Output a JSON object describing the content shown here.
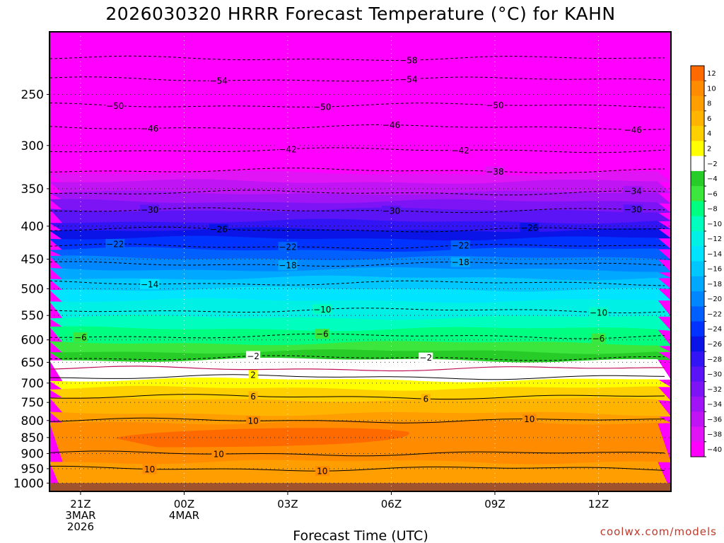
{
  "chart_data": {
    "type": "heatmap",
    "title": "2026030320 HRRR Forecast Temperature (°C) for KAHN",
    "xlabel": "Forecast Time (UTC)",
    "ylabel": "",
    "credit": "coolwx.com/models",
    "x_range_hours": [
      -0.9,
      17.1
    ],
    "x_ticks": [
      {
        "hour": 0,
        "lines": [
          "21Z",
          "3MAR",
          "2026"
        ]
      },
      {
        "hour": 3,
        "lines": [
          "00Z",
          "4MAR"
        ]
      },
      {
        "hour": 6,
        "lines": [
          "03Z"
        ]
      },
      {
        "hour": 9,
        "lines": [
          "06Z"
        ]
      },
      {
        "hour": 12,
        "lines": [
          "09Z"
        ]
      },
      {
        "hour": 15,
        "lines": [
          "12Z"
        ]
      }
    ],
    "y_axis": {
      "scale": "log-pressure",
      "range_hpa": [
        200,
        1030
      ],
      "ticks": [
        250,
        300,
        350,
        400,
        450,
        500,
        550,
        600,
        650,
        700,
        750,
        800,
        850,
        900,
        950,
        1000
      ]
    },
    "grid": true,
    "temperature_profile": [
      {
        "p": 200,
        "t": -60
      },
      {
        "p": 220,
        "t": -58
      },
      {
        "p": 235,
        "t": -55
      },
      {
        "p": 250,
        "t": -52
      },
      {
        "p": 265,
        "t": -49
      },
      {
        "p": 285,
        "t": -46
      },
      {
        "p": 300,
        "t": -43
      },
      {
        "p": 320,
        "t": -39.5
      },
      {
        "p": 335,
        "t": -37
      },
      {
        "p": 350,
        "t": -34.5
      },
      {
        "p": 370,
        "t": -31
      },
      {
        "p": 385,
        "t": -29
      },
      {
        "p": 400,
        "t": -26.5
      },
      {
        "p": 420,
        "t": -23.5
      },
      {
        "p": 440,
        "t": -21
      },
      {
        "p": 460,
        "t": -18.5
      },
      {
        "p": 480,
        "t": -16
      },
      {
        "p": 500,
        "t": -14
      },
      {
        "p": 525,
        "t": -11.5
      },
      {
        "p": 550,
        "t": -10
      },
      {
        "p": 575,
        "t": -8
      },
      {
        "p": 600,
        "t": -6.5
      },
      {
        "p": 620,
        "t": -4.5
      },
      {
        "p": 632,
        "t": -2.5
      },
      {
        "p": 640,
        "t": -2
      },
      {
        "p": 665,
        "t": 0
      },
      {
        "p": 685,
        "t": 2
      },
      {
        "p": 700,
        "t": 3.5
      },
      {
        "p": 725,
        "t": 5
      },
      {
        "p": 750,
        "t": 6.5
      },
      {
        "p": 775,
        "t": 8
      },
      {
        "p": 800,
        "t": 10
      },
      {
        "p": 830,
        "t": 11.2
      },
      {
        "p": 860,
        "t": 11.5
      },
      {
        "p": 900,
        "t": 10.5
      },
      {
        "p": 950,
        "t": 9.5
      },
      {
        "p": 990,
        "t": 8.5
      },
      {
        "p": 1030,
        "t": 8
      }
    ],
    "warm_core": {
      "t": 12,
      "hours": [
        1,
        9.5
      ],
      "p_hpa": [
        825,
        880
      ]
    },
    "ground": {
      "p_hpa": [
        1000,
        1030
      ],
      "color": "#a0522d"
    },
    "isotherms": [
      {
        "t": -58,
        "p": 220,
        "labels": [
          {
            "hour": 9.5
          }
        ]
      },
      {
        "t": -54,
        "p": 237,
        "labels": [
          {
            "hour": 4
          },
          {
            "hour": 9.5
          }
        ]
      },
      {
        "t": -50,
        "p": 260,
        "labels": [
          {
            "hour": 1
          },
          {
            "hour": 7
          },
          {
            "hour": 12
          }
        ]
      },
      {
        "t": -46,
        "p": 281,
        "labels": [
          {
            "hour": 2
          },
          {
            "hour": 9
          },
          {
            "hour": 16
          }
        ]
      },
      {
        "t": -42,
        "p": 305,
        "labels": [
          {
            "hour": 6
          },
          {
            "hour": 11
          }
        ]
      },
      {
        "t": -38,
        "p": 328,
        "labels": [
          {
            "hour": 12
          }
        ]
      },
      {
        "t": -34,
        "p": 355,
        "labels": [
          {
            "hour": 16
          }
        ]
      },
      {
        "t": -30,
        "p": 378,
        "labels": [
          {
            "hour": 2
          },
          {
            "hour": 9
          },
          {
            "hour": 16
          }
        ]
      },
      {
        "t": -26,
        "p": 405,
        "labels": [
          {
            "hour": 4
          },
          {
            "hour": 13
          }
        ]
      },
      {
        "t": -22,
        "p": 430,
        "labels": [
          {
            "hour": 1
          },
          {
            "hour": 6
          },
          {
            "hour": 11
          }
        ]
      },
      {
        "t": -18,
        "p": 458,
        "labels": [
          {
            "hour": 6
          },
          {
            "hour": 11
          }
        ]
      },
      {
        "t": -14,
        "p": 490,
        "labels": [
          {
            "hour": 2
          }
        ]
      },
      {
        "t": -10,
        "p": 540,
        "labels": [
          {
            "hour": 7
          },
          {
            "hour": 15
          }
        ]
      },
      {
        "t": -6,
        "p": 592,
        "labels": [
          {
            "hour": 0
          },
          {
            "hour": 7
          },
          {
            "hour": 15
          }
        ]
      },
      {
        "t": -2,
        "p": 640,
        "labels": [
          {
            "hour": 5
          },
          {
            "hour": 10
          }
        ]
      },
      {
        "t": 2,
        "p": 685,
        "labels": [
          {
            "hour": 5
          }
        ]
      },
      {
        "t": 6,
        "p": 735,
        "labels": [
          {
            "hour": 5
          },
          {
            "hour": 10
          }
        ]
      },
      {
        "t": 10,
        "p": 800,
        "labels": [
          {
            "hour": 5
          },
          {
            "hour": 13
          }
        ]
      },
      {
        "t": 10,
        "p": 900,
        "labels": [
          {
            "hour": 4
          }
        ]
      },
      {
        "t": 10,
        "p": 950,
        "labels": [
          {
            "hour": 2
          },
          {
            "hour": 7
          }
        ]
      }
    ],
    "colorbar": {
      "ticks": [
        12,
        10,
        8,
        6,
        4,
        2,
        -2,
        -4,
        -6,
        -8,
        -10,
        -12,
        -14,
        -16,
        -18,
        -20,
        -22,
        -24,
        -26,
        -28,
        -30,
        -32,
        -34,
        -36,
        -38,
        -40
      ],
      "colors": [
        {
          "min": 12,
          "color": "#ff6a00"
        },
        {
          "min": 10,
          "color": "#ff8c00"
        },
        {
          "min": 8,
          "color": "#ff9e00"
        },
        {
          "min": 6,
          "color": "#ffb400"
        },
        {
          "min": 4,
          "color": "#ffd000"
        },
        {
          "min": 2,
          "color": "#ffff00"
        },
        {
          "min": -2,
          "color": "#ffffff"
        },
        {
          "min": -4,
          "color": "#28cc28"
        },
        {
          "min": -6,
          "color": "#3ce63c"
        },
        {
          "min": -8,
          "color": "#00ff80"
        },
        {
          "min": -10,
          "color": "#00ffbe"
        },
        {
          "min": -12,
          "color": "#00f0e6"
        },
        {
          "min": -14,
          "color": "#00e4ff"
        },
        {
          "min": -16,
          "color": "#00c8ff"
        },
        {
          "min": -18,
          "color": "#00a8ff"
        },
        {
          "min": -20,
          "color": "#0087ff"
        },
        {
          "min": -22,
          "color": "#005fff"
        },
        {
          "min": -24,
          "color": "#0033ff"
        },
        {
          "min": -26,
          "color": "#0a14e6"
        },
        {
          "min": -28,
          "color": "#3214f5"
        },
        {
          "min": -30,
          "color": "#5a14f5"
        },
        {
          "min": -32,
          "color": "#7d14f5"
        },
        {
          "min": -34,
          "color": "#a014f5"
        },
        {
          "min": -36,
          "color": "#c014f5"
        },
        {
          "min": -38,
          "color": "#e014f5"
        },
        {
          "min": -100,
          "color": "#ff00ff"
        }
      ]
    }
  }
}
